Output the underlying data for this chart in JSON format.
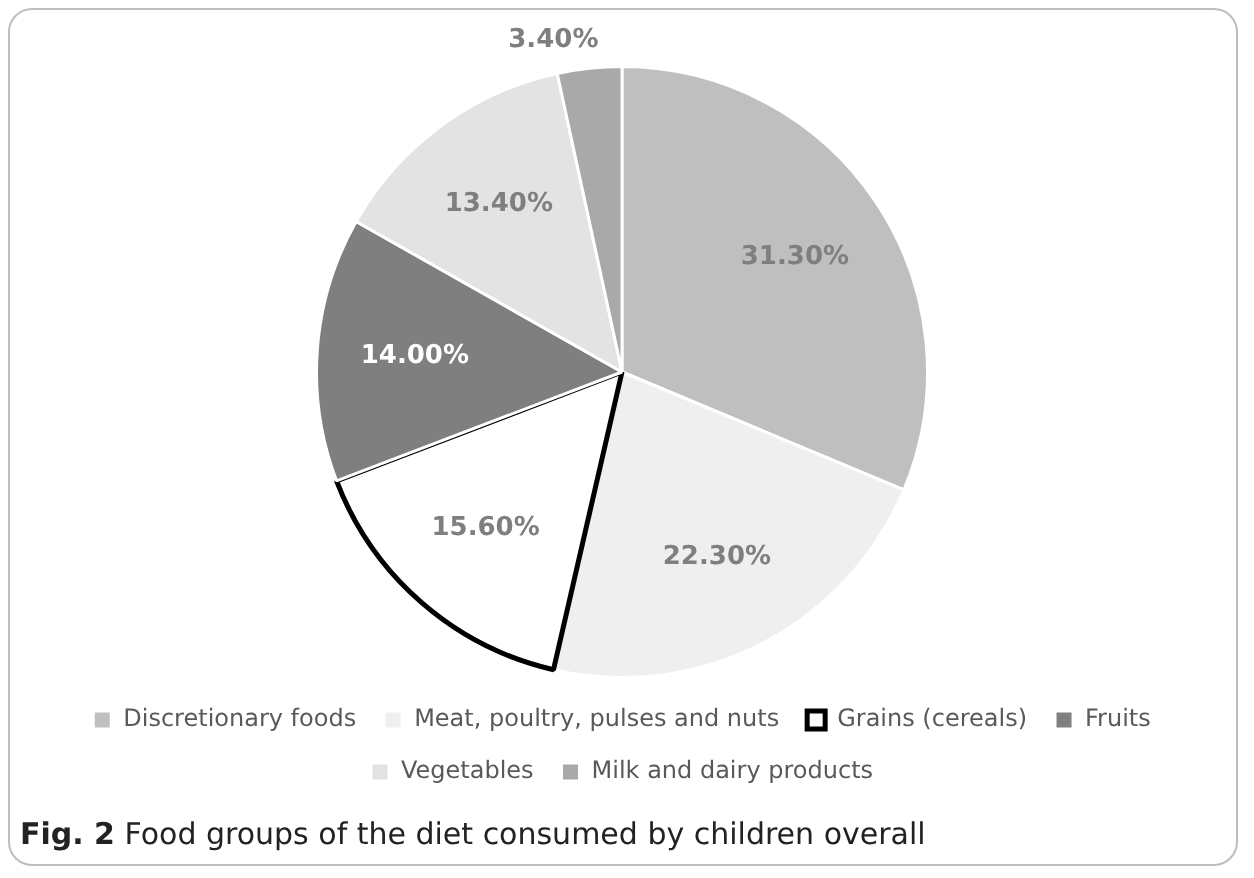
{
  "chart_data": {
    "type": "pie",
    "title": "Fig. 2 Food groups of the diet consumed by children overall",
    "categories": [
      "Discretionary foods",
      "Meat, poultry, pulses and nuts",
      "Grains (cereals)",
      "Fruits",
      "Vegetables",
      "Milk and dairy products"
    ],
    "values": [
      31.3,
      22.3,
      15.6,
      14.0,
      13.4,
      3.4
    ],
    "value_labels": [
      "31.30%",
      "22.30%",
      "15.60%",
      "14.00%",
      "13.40%",
      "3.40%"
    ],
    "colors": [
      "#bfbfbf",
      "#efefef",
      "#ffffff",
      "#7f7f7f",
      "#e3e3e3",
      "#a9a9a9"
    ],
    "legend": "bottom"
  }
}
